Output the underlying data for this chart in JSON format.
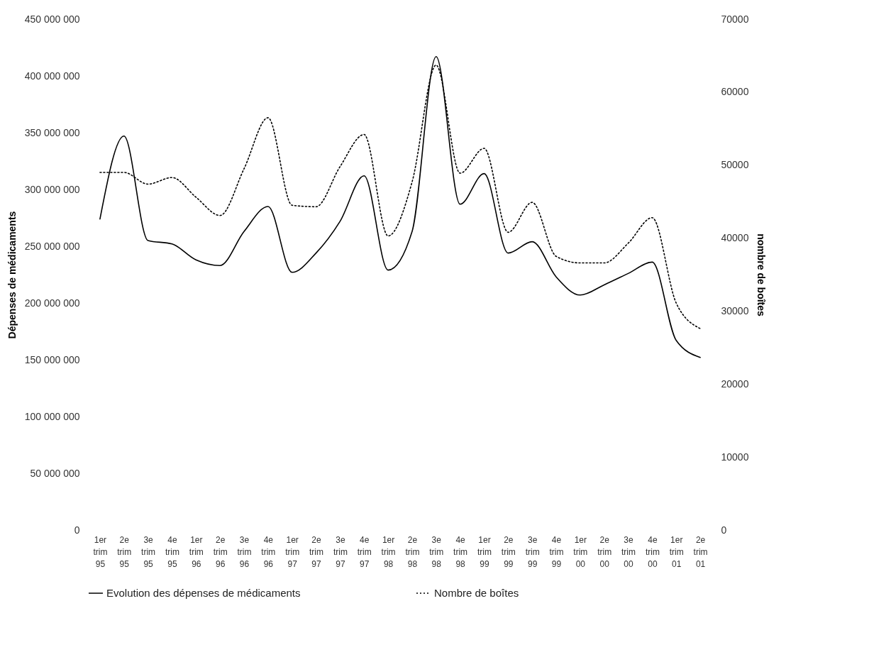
{
  "chart_data": {
    "type": "line",
    "categories": [
      "1er trim 95",
      "2e trim 95",
      "3e trim 95",
      "4e trim 95",
      "1er trim 96",
      "2e trim 96",
      "3e trim 96",
      "4e trim 96",
      "1er trim 97",
      "2e trim 97",
      "3e trim 97",
      "4e trim 97",
      "1er trim 98",
      "2e trim 98",
      "3e trim 98",
      "4e trim 98",
      "1er trim 99",
      "2e trim 99",
      "3e trim 99",
      "4e trim 99",
      "1er trim 00",
      "2e trim 00",
      "3e trim 00",
      "4e trim 00",
      "1er trim 01",
      "2e trim 01"
    ],
    "series": [
      {
        "name": "Evolution des dépenses de médicaments",
        "color": "#000000",
        "line_style": "solid",
        "values": [
          274000000,
          347000000,
          255000000,
          252000000,
          238000000,
          233000000,
          263000000,
          285000000,
          227000000,
          244000000,
          272000000,
          312000000,
          229000000,
          263000000,
          417000000,
          287000000,
          314000000,
          244000000,
          254000000,
          223000000,
          207000000,
          216000000,
          226000000,
          236000000,
          167000000,
          152000000
        ]
      },
      {
        "name": "Nombre de boîtes",
        "color": "#000000",
        "line_style": "dotted",
        "axis": "y2",
        "values": [
          49000,
          49000,
          47400,
          48300,
          45600,
          43100,
          49500,
          56500,
          44500,
          44300,
          49800,
          54200,
          40300,
          47700,
          63700,
          48900,
          52300,
          40800,
          44900,
          37500,
          36600,
          36600,
          39300,
          42800,
          31100,
          27600
        ]
      }
    ],
    "ylabel": "Dépenses de médicaments",
    "y2label": "nombre de boîtes",
    "ylim": [
      0,
      450000000
    ],
    "yticks": [
      {
        "value": 0,
        "label": "0"
      },
      {
        "value": 50000000,
        "label": "50 000 000"
      },
      {
        "value": 100000000,
        "label": "100 000 000"
      },
      {
        "value": 150000000,
        "label": "150 000 000"
      },
      {
        "value": 200000000,
        "label": "200 000 000"
      },
      {
        "value": 250000000,
        "label": "250 000 000"
      },
      {
        "value": 300000000,
        "label": "300 000 000"
      },
      {
        "value": 350000000,
        "label": "350 000 000"
      },
      {
        "value": 400000000,
        "label": "400 000 000"
      },
      {
        "value": 450000000,
        "label": "450 000 000"
      }
    ],
    "y2lim": [
      0,
      70000
    ],
    "y2ticks": [
      0,
      10000,
      20000,
      30000,
      40000,
      50000,
      60000,
      70000
    ],
    "grid": false,
    "legend": "bottom"
  }
}
